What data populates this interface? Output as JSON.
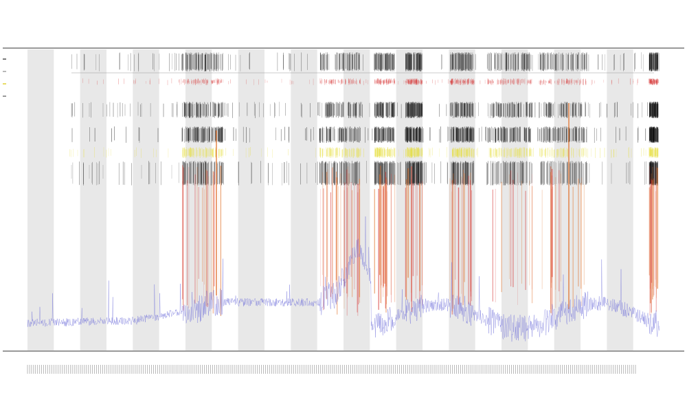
{
  "chart_data": {
    "type": "line",
    "title": "",
    "subtitle_lines": [
      "",
      ""
    ],
    "xlabel": "",
    "ylabel": "",
    "y_axis_label_tracks": "",
    "grid": true,
    "legend_position": "top-left",
    "legend": [
      {
        "name": "",
        "color": "#222222"
      },
      {
        "name": "",
        "color": "#888888"
      },
      {
        "name": "",
        "color": "#d9c400"
      },
      {
        "name": "",
        "color": "#555555"
      }
    ],
    "series": [
      {
        "name": "baseline",
        "color": "#6a6ad8"
      },
      {
        "name": "peaks",
        "color": "#e05020"
      }
    ],
    "x_tick_count": 300,
    "shaded_bands": 12,
    "event_regions": [
      [
        265,
        325
      ],
      [
        465,
        525
      ],
      [
        545,
        575
      ],
      [
        590,
        615
      ],
      [
        655,
        690
      ],
      [
        710,
        775
      ],
      [
        785,
        855
      ],
      [
        945,
        958
      ]
    ]
  },
  "colors": {
    "axis": "#333333",
    "band": "#e8e8e8",
    "blue": "#6a6ad8",
    "orange": "#e06a20",
    "red": "#d63030",
    "yellow": "#e6de3a",
    "black": "#111111"
  }
}
